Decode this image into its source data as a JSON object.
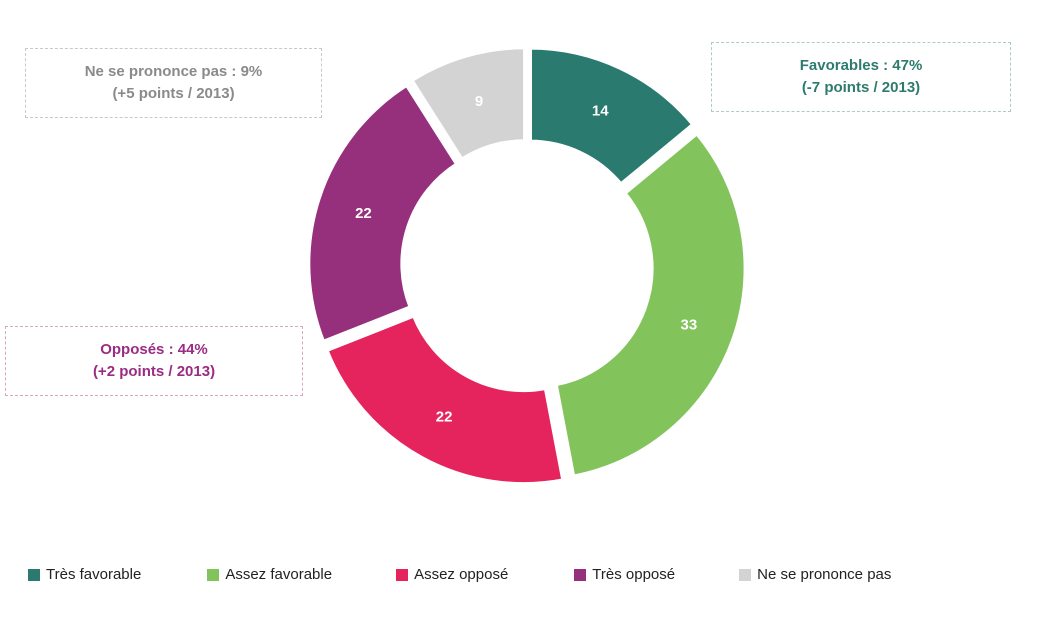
{
  "chart_data": {
    "type": "pie",
    "categories": [
      "Très favorable",
      "Assez favorable",
      "Assez opposé",
      "Très opposé",
      "Ne se prononce pas"
    ],
    "values": [
      14,
      33,
      22,
      22,
      9
    ],
    "colors": [
      "#2a7a6f",
      "#82c35c",
      "#e5245e",
      "#962f7c",
      "#d3d3d3"
    ],
    "legend_position": "bottom"
  },
  "annotations": {
    "ne_se_prononce": {
      "line1": "Ne se prononce pas :  9%",
      "line2": "(+5 points / 2013)"
    },
    "favorables": {
      "line1": "Favorables : 47%",
      "line2": "(-7 points / 2013)"
    },
    "opposes": {
      "line1": "Opposés :  44%",
      "line2": "(+2 points / 2013)"
    }
  }
}
